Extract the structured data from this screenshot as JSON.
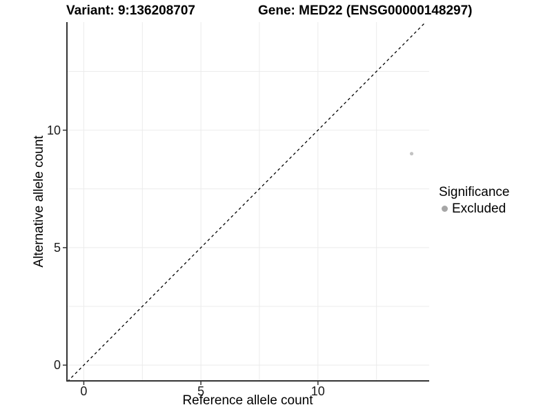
{
  "chart_data": {
    "type": "scatter",
    "title_left": "Variant: 9:136208707",
    "title_right": "Gene: MED22 (ENSG00000148297)",
    "xlabel": "Reference allele count",
    "ylabel": "Alternative allele count",
    "xlim": [
      -0.75,
      14.75
    ],
    "ylim": [
      -0.7,
      14.6
    ],
    "x_ticks": [
      0,
      5,
      10
    ],
    "y_ticks": [
      0,
      5,
      10
    ],
    "x_minor_gridlines": [
      2.5,
      7.5,
      12.5
    ],
    "y_minor_gridlines": [
      2.5,
      7.5,
      12.5
    ],
    "grid": "on",
    "identity_line": {
      "style": "dashed",
      "slope": 1,
      "intercept": 0,
      "color": "#000000"
    },
    "series": [
      {
        "name": "Excluded",
        "marker": "circle",
        "color": "#c3c3c3",
        "points": [
          {
            "x": 14,
            "y": 9
          }
        ]
      }
    ],
    "legend": {
      "position": "right",
      "title": "Significance",
      "entries": [
        {
          "label": "Excluded",
          "color": "#a6a6a6"
        }
      ]
    },
    "colors": {
      "axis_line": "#333333",
      "gridline": "#ebebeb",
      "tick_label": "#1a1a1a",
      "background": "#ffffff"
    }
  }
}
